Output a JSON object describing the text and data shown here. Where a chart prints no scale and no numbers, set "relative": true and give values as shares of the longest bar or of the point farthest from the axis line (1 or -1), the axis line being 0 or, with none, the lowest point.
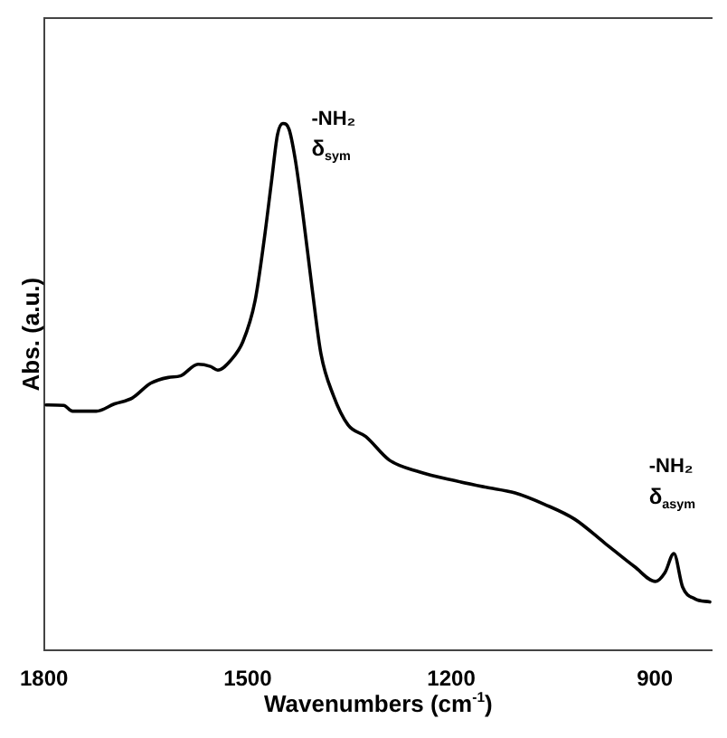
{
  "chart_data": {
    "type": "line",
    "xlabel": "Wavenumbers (cm$^{-1}$)",
    "ylabel": "Abs. (a.u.)",
    "relative": true,
    "color": "#000000",
    "marker": "none",
    "grid": false,
    "legend": false,
    "xlim": [
      1800,
      815
    ],
    "xticks": [
      1800,
      1500,
      1200,
      900
    ],
    "x": [
      1797,
      1771,
      1758,
      1723,
      1696,
      1670,
      1643,
      1617,
      1599,
      1573,
      1555,
      1544,
      1524,
      1507,
      1489,
      1476,
      1465,
      1456,
      1448,
      1439,
      1430,
      1419,
      1405,
      1392,
      1374,
      1352,
      1326,
      1291,
      1247,
      1194,
      1150,
      1106,
      1062,
      1018,
      974,
      930,
      899,
      885,
      872,
      859,
      841,
      819
    ],
    "values": [
      0.466,
      0.465,
      0.454,
      0.454,
      0.468,
      0.479,
      0.507,
      0.518,
      0.521,
      0.543,
      0.539,
      0.532,
      0.552,
      0.586,
      0.664,
      0.776,
      0.888,
      0.979,
      1.0,
      0.989,
      0.933,
      0.832,
      0.687,
      0.563,
      0.485,
      0.428,
      0.406,
      0.361,
      0.339,
      0.322,
      0.31,
      0.299,
      0.277,
      0.249,
      0.204,
      0.159,
      0.131,
      0.148,
      0.184,
      0.12,
      0.098,
      0.092
    ],
    "annotations": [
      "-NH₂\nδ$_{sym}$",
      "-NH₂\nδ$_{asym}$"
    ]
  }
}
